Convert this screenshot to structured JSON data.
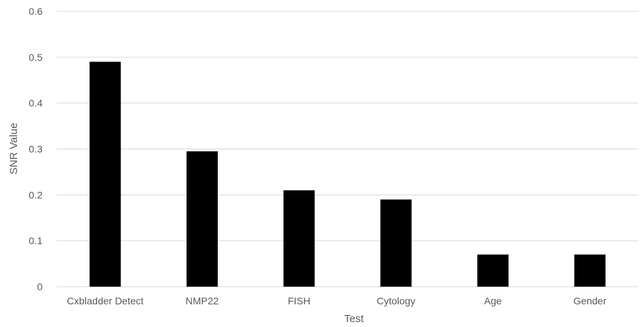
{
  "chart_data": {
    "type": "bar",
    "title": "",
    "xlabel": "Test",
    "ylabel": "SNR Value",
    "categories": [
      "Cxbladder Detect",
      "NMP22",
      "FISH",
      "Cytology",
      "Age",
      "Gender"
    ],
    "values": [
      0.49,
      0.295,
      0.21,
      0.19,
      0.07,
      0.07
    ],
    "ylim": [
      0,
      0.6
    ],
    "yticks": [
      "0",
      "0.1",
      "0.2",
      "0.3",
      "0.4",
      "0.5",
      "0.6"
    ],
    "grid": true,
    "legend": "none",
    "colors": {
      "bar": "#000000",
      "grid": "#d9d9d9",
      "text": "#595959"
    }
  }
}
